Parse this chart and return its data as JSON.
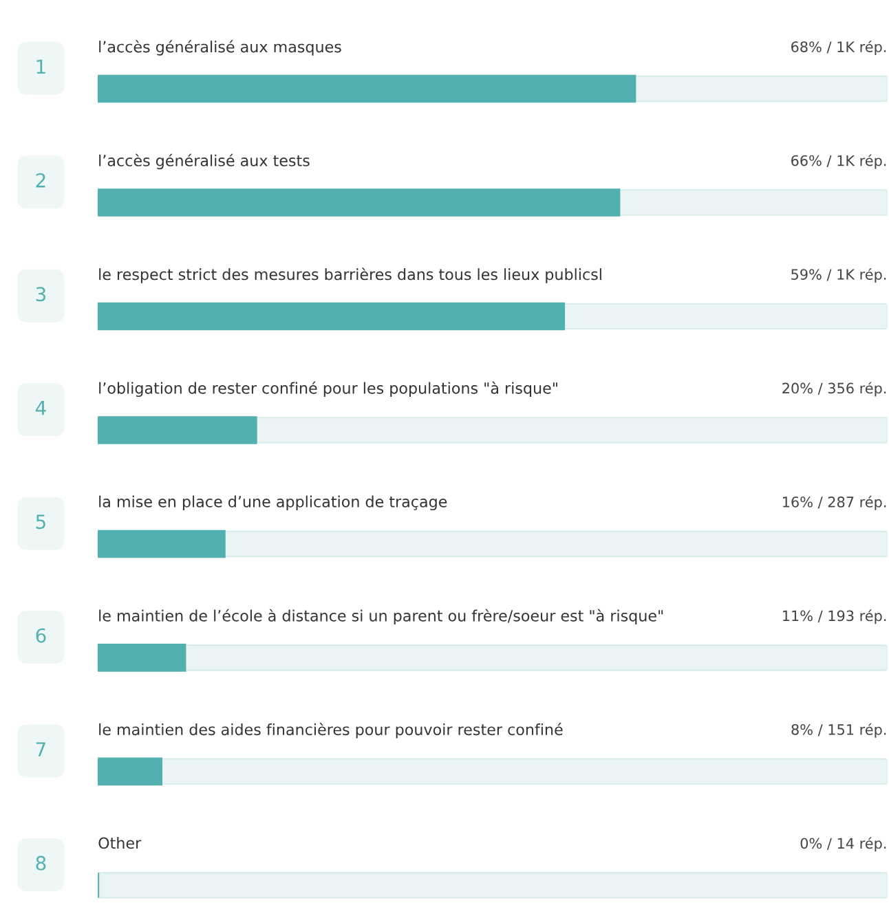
{
  "chart_data": {
    "type": "bar",
    "orientation": "horizontal",
    "categories": [
      "l’accès généralisé aux masques",
      "l’accès généralisé aux tests",
      "le respect strict des mesures barrières dans tous les lieux publicsl",
      "l’obligation de rester confiné pour les populations \"à risque\"",
      "la mise en place d’une application de traçage",
      "le maintien de l’école à distance si un parent ou frère/soeur est \"à risque\"",
      "le maintien des aides financières pour pouvoir rester confiné",
      "Other"
    ],
    "values": [
      68,
      66,
      59,
      20,
      16,
      11,
      8,
      0
    ],
    "value_labels": [
      "68% / 1K rép.",
      "66% / 1K rép.",
      "59% / 1K rép.",
      "20% / 356 rép.",
      "16% / 287 rép.",
      "11% / 193 rép.",
      "8% / 151 rép.",
      "0% / 14 rép."
    ],
    "annotations": [
      "1",
      "2",
      "3",
      "4",
      "5",
      "6",
      "7",
      "8"
    ],
    "color": "#52b0ae",
    "xlim": [
      0,
      100
    ]
  }
}
